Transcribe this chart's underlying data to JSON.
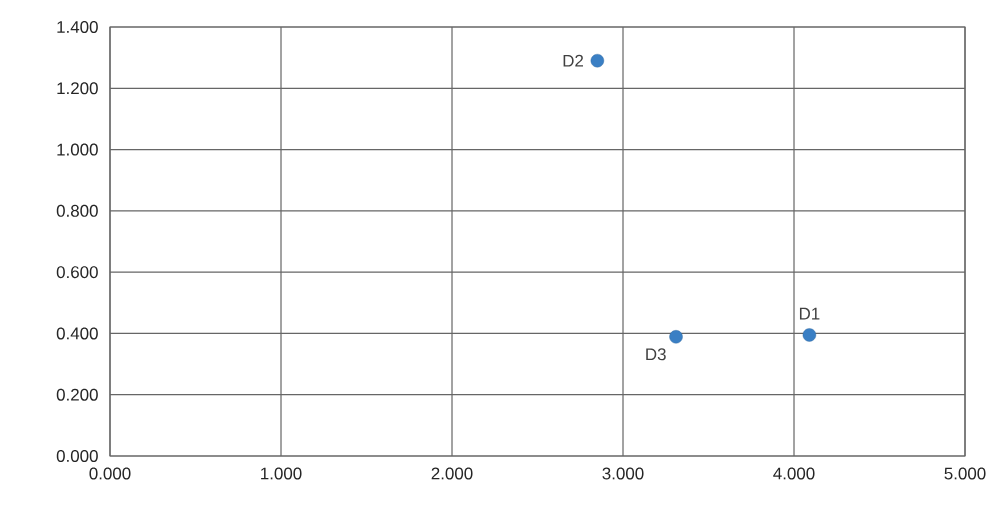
{
  "chart_data": {
    "type": "scatter",
    "x": [
      4.09,
      2.85,
      3.31
    ],
    "values": [
      0.395,
      1.29,
      0.389
    ],
    "color": "#3a7fc4",
    "marker": "circle",
    "grid": true,
    "xlim": [
      0,
      5
    ],
    "ylim": [
      0,
      1.4
    ],
    "xticks": [
      {
        "value": 0,
        "label": "0.000"
      },
      {
        "value": 1,
        "label": "1.000"
      },
      {
        "value": 2,
        "label": "2.000"
      },
      {
        "value": 3,
        "label": "3.000"
      },
      {
        "value": 4,
        "label": "4.000"
      },
      {
        "value": 5,
        "label": "5.000"
      }
    ],
    "yticks": [
      {
        "value": 0,
        "label": "0.000"
      },
      {
        "value": 0.2,
        "label": "0.200"
      },
      {
        "value": 0.4,
        "label": "0.400"
      },
      {
        "value": 0.6,
        "label": "0.600"
      },
      {
        "value": 0.8,
        "label": "0.800"
      },
      {
        "value": 1.0,
        "label": "1.000"
      },
      {
        "value": 1.2,
        "label": "1.200"
      },
      {
        "value": 1.4,
        "label": "1.400"
      }
    ],
    "annotations": [
      {
        "text": "D1",
        "x": 4.09,
        "y": 0.395
      },
      {
        "text": "D2",
        "x": 2.85,
        "y": 1.29
      },
      {
        "text": "D3",
        "x": 3.31,
        "y": 0.389
      }
    ]
  }
}
